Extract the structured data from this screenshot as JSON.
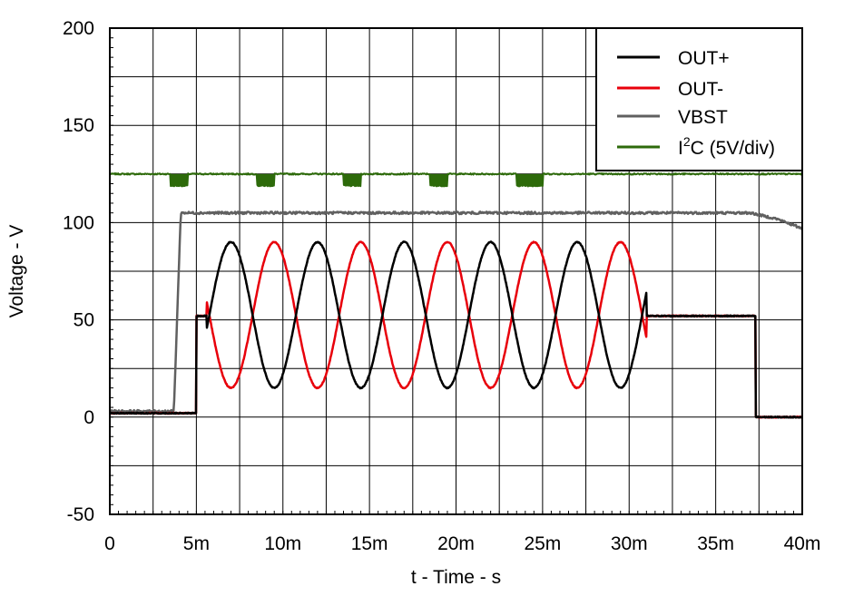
{
  "chart_data": {
    "type": "line",
    "xlabel": "t - Time - s",
    "ylabel": "Voltage - V",
    "xlim": [
      0,
      40
    ],
    "ylim": [
      -50,
      200
    ],
    "x_ticks": [
      0,
      5,
      10,
      15,
      20,
      25,
      30,
      35,
      40
    ],
    "x_tick_labels": [
      "0",
      "5m",
      "10m",
      "15m",
      "20m",
      "25m",
      "30m",
      "35m",
      "40m"
    ],
    "y_ticks": [
      -50,
      0,
      50,
      100,
      150,
      200
    ],
    "y_tick_labels": [
      "-50",
      "0",
      "50",
      "100",
      "150",
      "200"
    ],
    "grid": true,
    "grid_x_step": 2.5,
    "grid_y_step": 25,
    "legend_position": "top-right",
    "series": [
      {
        "name": "OUT+",
        "color": "#000000",
        "description": "0 V until ~5 ms, 52 V step, then sine 15–90 V (period 5 ms) until ~31 ms, 52 V hold, drop to 0 V at ~37.3 ms",
        "segments": {
          "low_until": 5.0,
          "low_value": 2,
          "step_value": 52,
          "step_until": 5.6,
          "sine_start": 5.6,
          "sine_end": 31.0,
          "sine_min": 15,
          "sine_max": 90,
          "sine_period": 5.0,
          "first_peak": 7.0,
          "hold_value": 52,
          "hold_until": 37.3,
          "end_value": 0
        }
      },
      {
        "name": "OUT-",
        "color": "#e8000b",
        "description": "Complementary to OUT+",
        "segments": {
          "low_until": 5.0,
          "low_value": 2,
          "step_value": 52,
          "step_until": 5.6,
          "sine_start": 5.6,
          "sine_end": 31.0,
          "sine_min": 15,
          "sine_max": 90,
          "sine_period": 5.0,
          "first_peak": 9.5,
          "hold_value": 52,
          "hold_until": 37.3,
          "end_value": 0
        }
      },
      {
        "name": "VBST",
        "color": "#606060",
        "points": [
          [
            0,
            3
          ],
          [
            3.7,
            3
          ],
          [
            4.1,
            105
          ],
          [
            37.0,
            105
          ],
          [
            38.5,
            102
          ],
          [
            40,
            97
          ]
        ]
      },
      {
        "name": "I²C (5V/div)",
        "name_base": "I",
        "name_sup": "2",
        "name_rest": "C (5V/div)",
        "color": "#2d6a0a",
        "baseline": 125,
        "pulse_low": 119,
        "pulses": [
          [
            3.5,
            4.5
          ],
          [
            8.5,
            9.5
          ],
          [
            13.5,
            14.5
          ],
          [
            18.5,
            19.5
          ],
          [
            23.5,
            25.0
          ]
        ]
      }
    ]
  }
}
